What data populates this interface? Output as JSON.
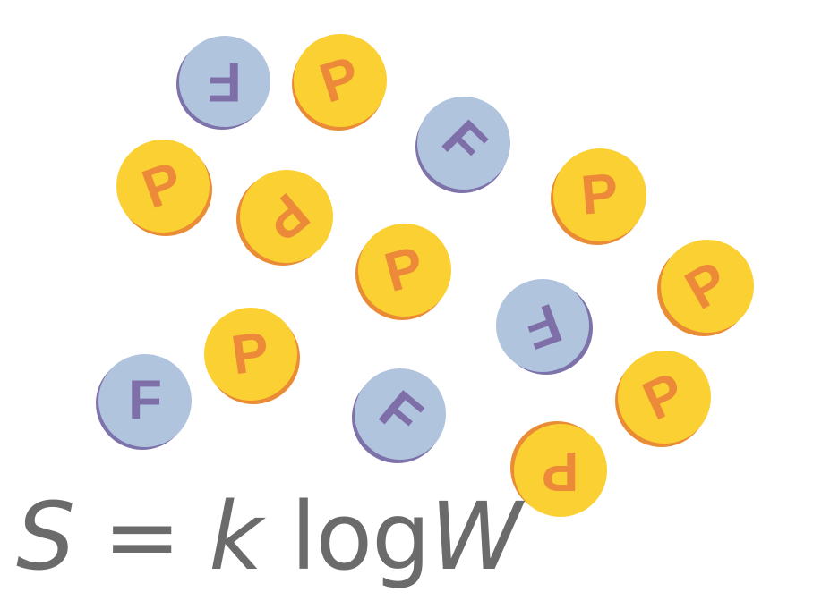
{
  "coins": [
    {
      "letter": "F",
      "side": "tails"
    },
    {
      "letter": "P",
      "side": "heads"
    },
    {
      "letter": "F",
      "side": "tails"
    },
    {
      "letter": "P",
      "side": "heads"
    },
    {
      "letter": "P",
      "side": "heads"
    },
    {
      "letter": "P",
      "side": "heads"
    },
    {
      "letter": "P",
      "side": "heads"
    },
    {
      "letter": "P",
      "side": "heads"
    },
    {
      "letter": "F",
      "side": "tails"
    },
    {
      "letter": "F",
      "side": "tails"
    },
    {
      "letter": "P",
      "side": "heads"
    },
    {
      "letter": "F",
      "side": "tails"
    },
    {
      "letter": "P",
      "side": "heads"
    },
    {
      "letter": "P",
      "side": "heads"
    }
  ],
  "formula": {
    "s": "S",
    "equals": " = ",
    "k": "k",
    "log": " log",
    "w": "W"
  },
  "colors": {
    "heads_face": "#fbd033",
    "heads_letter": "#ec8a39",
    "tails_face": "#b1c4de",
    "tails_letter": "#7e6fa9",
    "formula_text": "#6b6b6b"
  }
}
